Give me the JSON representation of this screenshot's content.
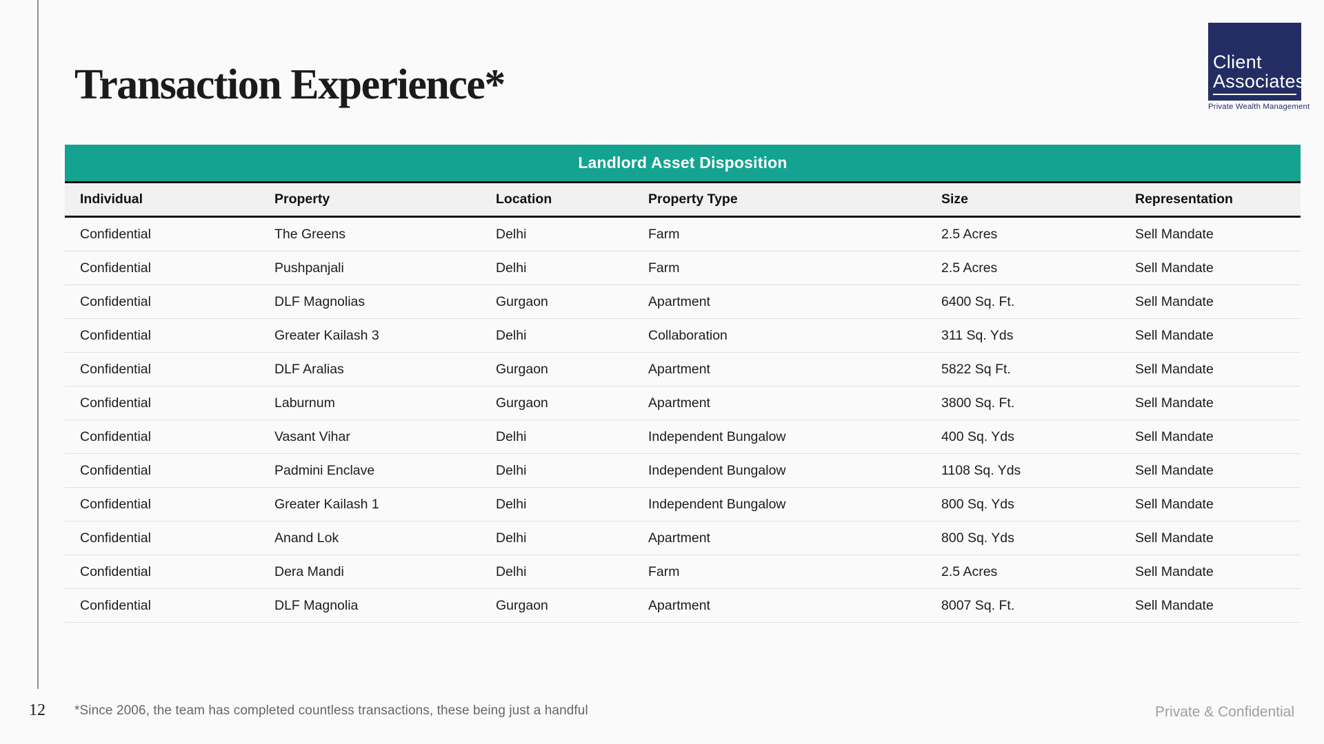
{
  "header": {
    "title": "Transaction Experience*"
  },
  "logo": {
    "line1": "Client",
    "line2": "Associates",
    "tagline": "Private Wealth Management",
    "navy_color": "#232D64"
  },
  "table": {
    "title": "Landlord Asset Disposition",
    "accent_color": "#14A390",
    "columns": [
      "Individual",
      "Property",
      "Location",
      "Property Type",
      "Size",
      "Representation"
    ],
    "rows": [
      [
        "Confidential",
        "The Greens",
        "Delhi",
        "Farm",
        "2.5 Acres",
        "Sell Mandate"
      ],
      [
        "Confidential",
        "Pushpanjali",
        "Delhi",
        "Farm",
        "2.5 Acres",
        "Sell Mandate"
      ],
      [
        "Confidential",
        "DLF Magnolias",
        "Gurgaon",
        "Apartment",
        "6400 Sq. Ft.",
        "Sell Mandate"
      ],
      [
        "Confidential",
        "Greater Kailash 3",
        "Delhi",
        "Collaboration",
        "311 Sq. Yds",
        "Sell Mandate"
      ],
      [
        "Confidential",
        "DLF Aralias",
        "Gurgaon",
        "Apartment",
        "5822 Sq Ft.",
        "Sell Mandate"
      ],
      [
        "Confidential",
        "Laburnum",
        "Gurgaon",
        "Apartment",
        "3800 Sq. Ft.",
        "Sell Mandate"
      ],
      [
        "Confidential",
        "Vasant Vihar",
        "Delhi",
        "Independent Bungalow",
        "400 Sq. Yds",
        "Sell Mandate"
      ],
      [
        "Confidential",
        "Padmini Enclave",
        "Delhi",
        "Independent Bungalow",
        "1108 Sq. Yds",
        "Sell Mandate"
      ],
      [
        "Confidential",
        "Greater Kailash 1",
        "Delhi",
        "Independent Bungalow",
        "800 Sq. Yds",
        "Sell Mandate"
      ],
      [
        "Confidential",
        "Anand Lok",
        "Delhi",
        "Apartment",
        "800 Sq. Yds",
        "Sell Mandate"
      ],
      [
        "Confidential",
        "Dera Mandi",
        "Delhi",
        "Farm",
        "2.5 Acres",
        "Sell Mandate"
      ],
      [
        "Confidential",
        "DLF Magnolia",
        "Gurgaon",
        "Apartment",
        "8007 Sq. Ft.",
        "Sell Mandate"
      ]
    ]
  },
  "footer": {
    "page_number": "12",
    "footnote": "*Since 2006, the team has completed countless transactions, these being just a handful",
    "confidential_label": "Private & Confidential"
  }
}
